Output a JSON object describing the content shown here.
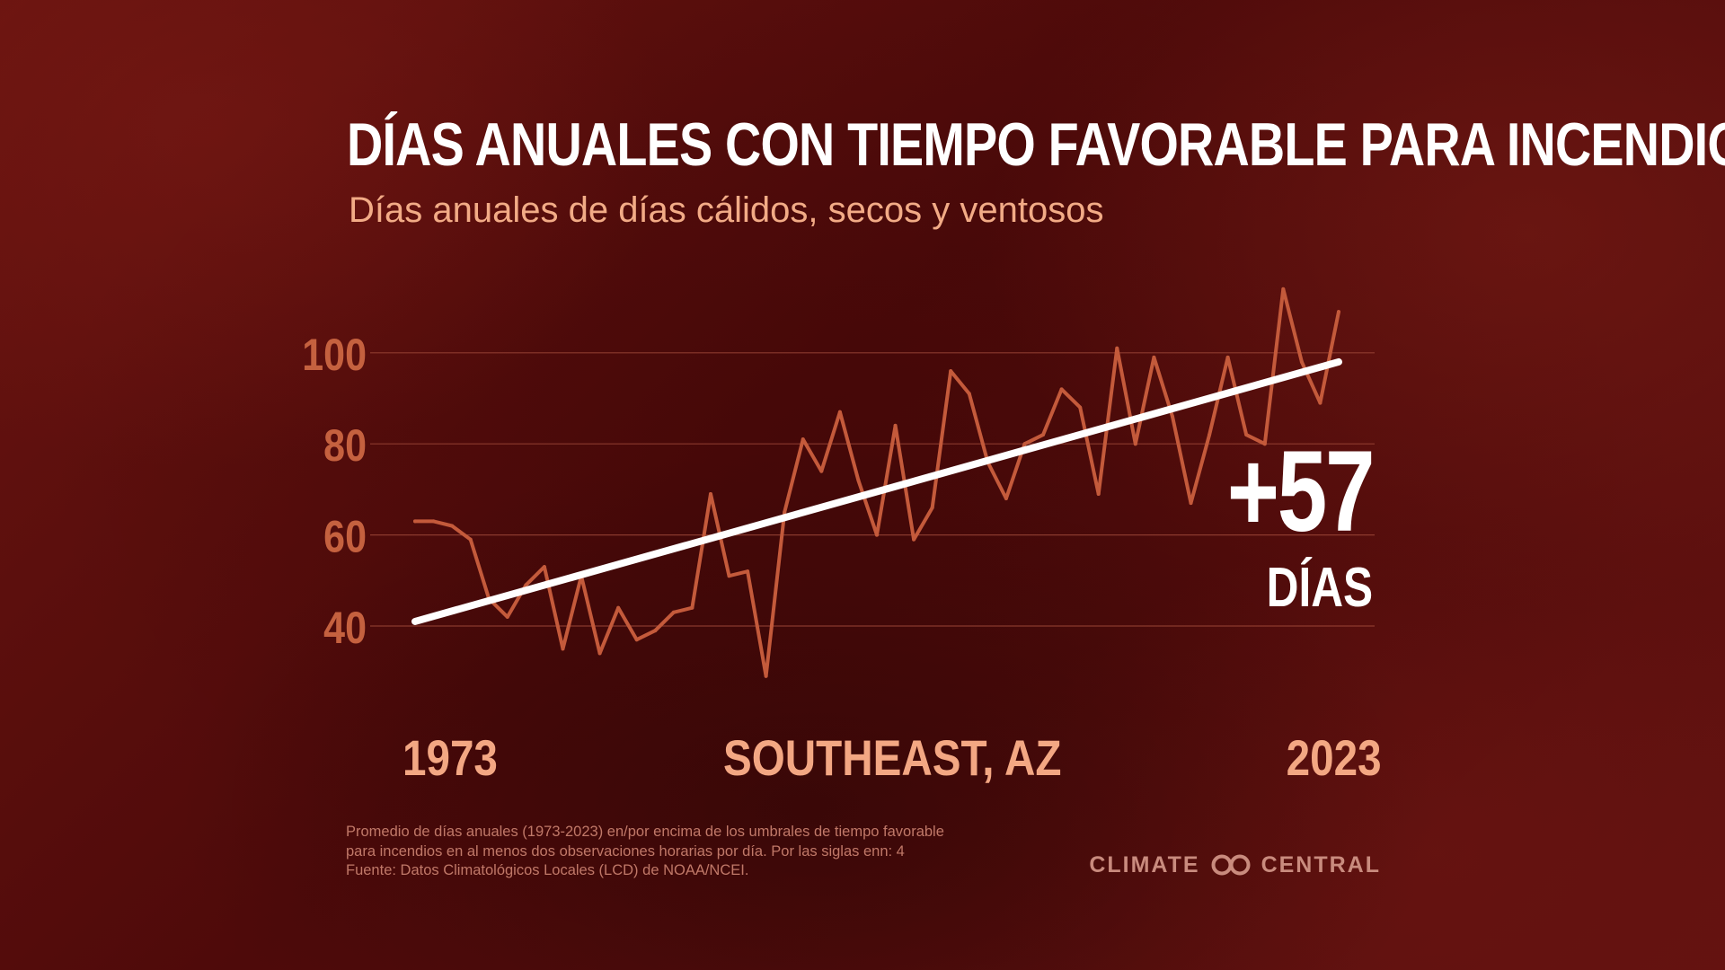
{
  "title": "DÍAS ANUALES CON TIEMPO FAVORABLE PARA INCENDIOS",
  "subtitle": "Días anuales de días cálidos, secos y ventosos",
  "colors": {
    "background": "#5a0c0c",
    "series_line": "#c45a3b",
    "trend_line": "#ffffff",
    "axis_label": "#c5613f",
    "gridline": "#a04a3a",
    "accent_text": "#f3a783"
  },
  "chart_data": {
    "type": "line",
    "title": "DÍAS ANUALES CON TIEMPO FAVORABLE PARA INCENDIOS",
    "subtitle": "Días anuales de días cálidos, secos y ventosos",
    "x": [
      1973,
      1974,
      1975,
      1976,
      1977,
      1978,
      1979,
      1980,
      1981,
      1982,
      1983,
      1984,
      1985,
      1986,
      1987,
      1988,
      1989,
      1990,
      1991,
      1992,
      1993,
      1994,
      1995,
      1996,
      1997,
      1998,
      1999,
      2000,
      2001,
      2002,
      2003,
      2004,
      2005,
      2006,
      2007,
      2008,
      2009,
      2010,
      2011,
      2012,
      2013,
      2014,
      2015,
      2016,
      2017,
      2018,
      2019,
      2020,
      2021,
      2022,
      2023
    ],
    "series": [
      {
        "values": [
          63,
          63,
          62,
          59,
          46,
          42,
          49,
          53,
          35,
          51,
          34,
          44,
          37,
          39,
          43,
          44,
          69,
          51,
          52,
          29,
          65,
          81,
          74,
          87,
          72,
          60,
          84,
          59,
          66,
          96,
          91,
          76,
          68,
          80,
          82,
          92,
          88,
          69,
          101,
          80,
          99,
          86,
          67,
          82,
          99,
          82,
          80,
          114,
          98,
          89,
          109
        ]
      }
    ],
    "trend": {
      "x": [
        1973,
        2023
      ],
      "values": [
        41,
        98
      ]
    },
    "yticks": [
      40,
      60,
      80,
      100
    ],
    "ylim": [
      26,
      116
    ],
    "xlim": [
      1973,
      2023
    ],
    "grid": true,
    "x_label_start": "1973",
    "x_label_center": "SOUTHEAST, AZ",
    "x_label_end": "2023",
    "callout_value": "+57",
    "callout_unit": "DÍAS"
  },
  "footnote": [
    "Promedio de días anuales (1973-2023) en/por encima de los umbrales de tiempo favorable",
    "para incendios en al menos dos observaciones horarias por día. Por las siglas enn: 4",
    "Fuente: Datos Climatológicos Locales (LCD) de NOAA/NCEI."
  ],
  "logo": {
    "left": "CLIMATE",
    "right": "CENTRAL",
    "icon": "infinity-rings-icon"
  }
}
